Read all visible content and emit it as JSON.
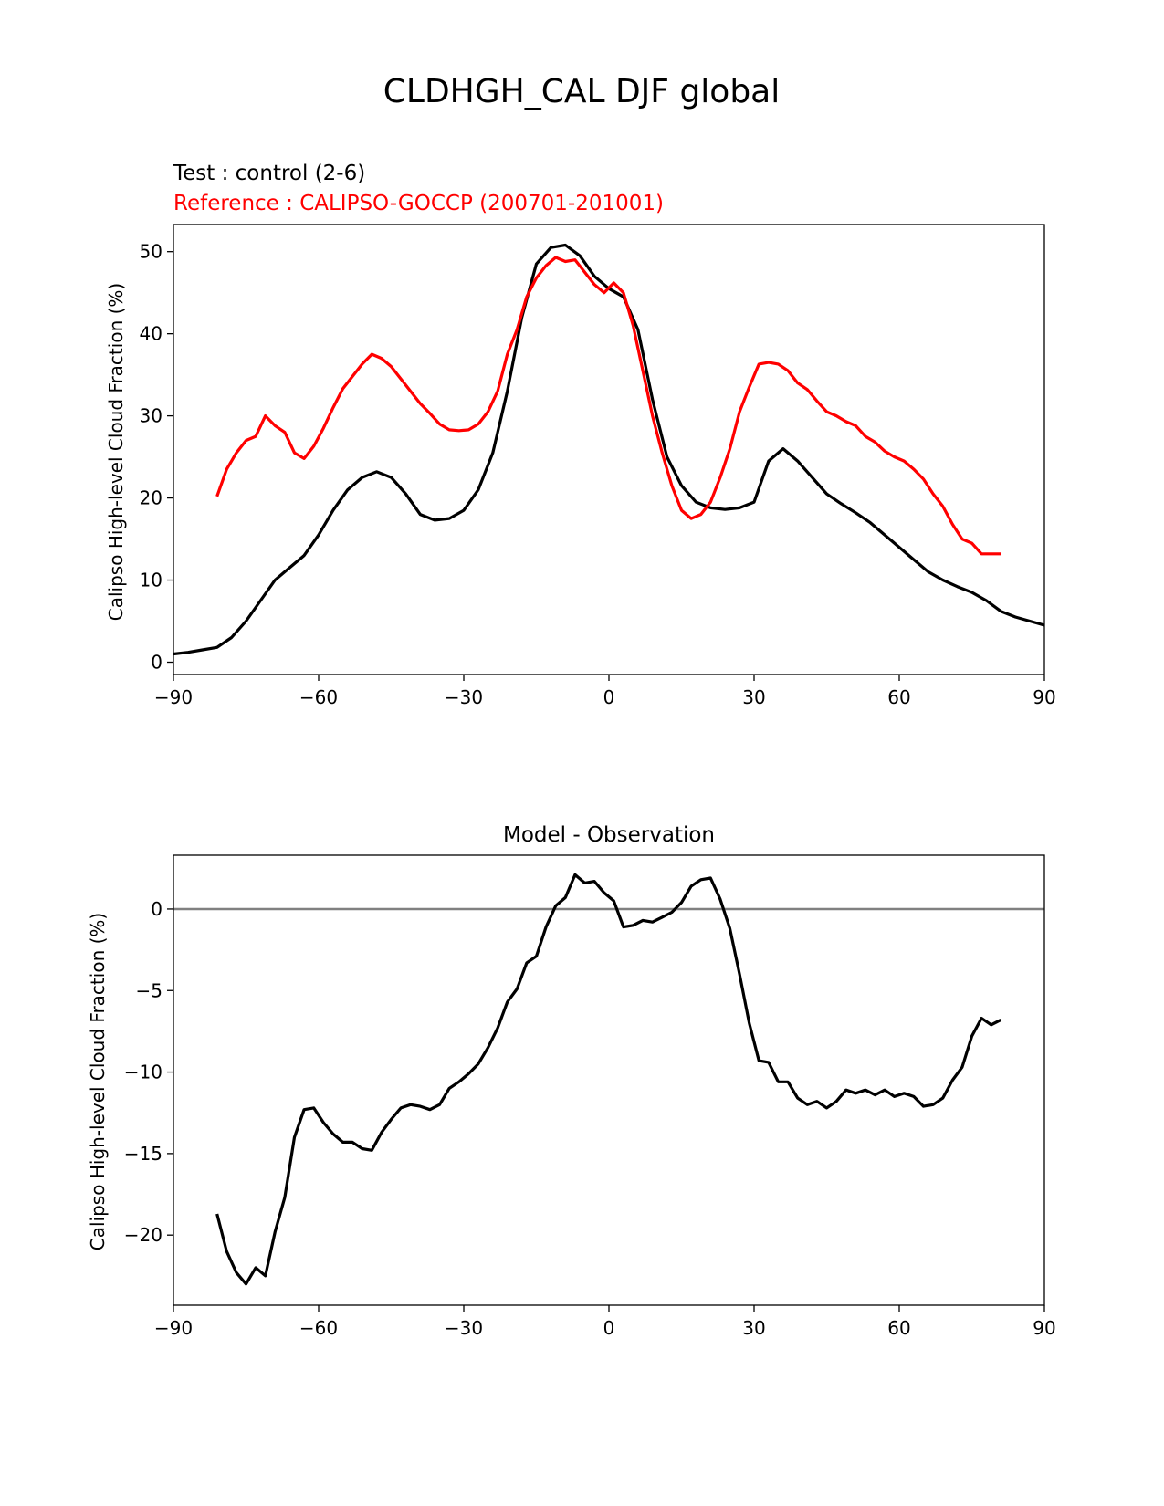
{
  "figure": {
    "title": "CLDHGH_CAL DJF global"
  },
  "chart_data": [
    {
      "type": "line",
      "test_label": "Test : control (2-6)",
      "reference_label": "Reference : CALIPSO-GOCCP (200701-201001)",
      "ylabel": "Calipso High-level Cloud Fraction (%)",
      "xlabel": "",
      "xlim": [
        -90,
        90
      ],
      "ylim": [
        -1.5,
        53.3
      ],
      "xticks": [
        -90,
        -60,
        -30,
        0,
        30,
        60,
        90
      ],
      "xtick_labels": [
        "−90",
        "−60",
        "−30",
        "0",
        "30",
        "60",
        "90"
      ],
      "yticks": [
        0,
        10,
        20,
        30,
        40,
        50
      ],
      "ytick_labels": [
        "0",
        "10",
        "20",
        "30",
        "40",
        "50"
      ],
      "grid": false,
      "colors": {
        "test": "#000000",
        "reference": "#ff0000"
      },
      "series": [
        {
          "role": "test",
          "x": [
            -90,
            -87,
            -84,
            -81,
            -78,
            -75,
            -72,
            -69,
            -66,
            -63,
            -60,
            -57,
            -54,
            -51,
            -48,
            -45,
            -42,
            -39,
            -36,
            -33,
            -30,
            -27,
            -24,
            -21,
            -18,
            -15,
            -12,
            -9,
            -6,
            -3,
            0,
            3,
            6,
            9,
            12,
            15,
            18,
            21,
            24,
            27,
            30,
            33,
            36,
            39,
            42,
            45,
            48,
            51,
            54,
            57,
            60,
            63,
            66,
            69,
            72,
            75,
            78,
            81,
            84,
            87,
            90
          ],
          "values": [
            1.0,
            1.2,
            1.5,
            1.8,
            3.0,
            5.0,
            7.5,
            10.0,
            11.5,
            13.0,
            15.5,
            18.5,
            21.0,
            22.5,
            23.2,
            22.5,
            20.5,
            18.0,
            17.3,
            17.5,
            18.5,
            21.0,
            25.5,
            33.0,
            42.0,
            48.5,
            50.5,
            50.8,
            49.5,
            47.0,
            45.5,
            44.5,
            40.5,
            32.0,
            25.0,
            21.5,
            19.5,
            18.8,
            18.6,
            18.8,
            19.5,
            24.5,
            26.0,
            24.5,
            22.5,
            20.5,
            19.3,
            18.2,
            17.0,
            15.5,
            14.0,
            12.5,
            11.0,
            10.0,
            9.2,
            8.5,
            7.5,
            6.2,
            5.5,
            5.0,
            4.5
          ]
        },
        {
          "role": "reference",
          "x": [
            -81,
            -79,
            -77,
            -75,
            -73,
            -71,
            -69,
            -67,
            -65,
            -63,
            -61,
            -59,
            -57,
            -55,
            -53,
            -51,
            -49,
            -47,
            -45,
            -43,
            -41,
            -39,
            -37,
            -35,
            -33,
            -31,
            -29,
            -27,
            -25,
            -23,
            -21,
            -19,
            -17,
            -15,
            -13,
            -11,
            -9,
            -7,
            -5,
            -3,
            -1,
            1,
            3,
            5,
            7,
            9,
            11,
            13,
            15,
            17,
            19,
            21,
            23,
            25,
            27,
            29,
            31,
            33,
            35,
            37,
            39,
            41,
            43,
            45,
            47,
            49,
            51,
            53,
            55,
            57,
            59,
            61,
            63,
            65,
            67,
            69,
            71,
            73,
            75,
            77,
            79,
            81
          ],
          "values": [
            20.2,
            23.5,
            25.5,
            27.0,
            27.5,
            30.0,
            28.8,
            28.0,
            25.5,
            24.8,
            26.3,
            28.5,
            31.0,
            33.3,
            34.8,
            36.3,
            37.5,
            37.0,
            36.0,
            34.5,
            33.0,
            31.5,
            30.3,
            29.0,
            28.3,
            28.2,
            28.3,
            29.0,
            30.5,
            33.0,
            37.5,
            40.5,
            44.5,
            46.8,
            48.3,
            49.3,
            48.8,
            49.0,
            47.5,
            46.0,
            45.0,
            46.2,
            45.0,
            41.0,
            35.5,
            30.0,
            25.5,
            21.5,
            18.5,
            17.5,
            18.0,
            19.5,
            22.5,
            26.0,
            30.5,
            33.5,
            36.3,
            36.5,
            36.3,
            35.5,
            34.0,
            33.2,
            31.8,
            30.5,
            30.0,
            29.3,
            28.8,
            27.5,
            26.8,
            25.7,
            25.0,
            24.5,
            23.5,
            22.3,
            20.5,
            19.0,
            16.8,
            15.0,
            14.5,
            13.2,
            13.2,
            13.2
          ]
        }
      ]
    },
    {
      "type": "line",
      "title": "Model - Observation",
      "ylabel": "Calipso High-level Cloud Fraction (%)",
      "xlabel": "",
      "xlim": [
        -90,
        90
      ],
      "ylim": [
        -24.3,
        3.3
      ],
      "xticks": [
        -90,
        -60,
        -30,
        0,
        30,
        60,
        90
      ],
      "xtick_labels": [
        "−90",
        "−60",
        "−30",
        "0",
        "30",
        "60",
        "90"
      ],
      "yticks": [
        -20,
        -15,
        -10,
        -5,
        0
      ],
      "ytick_labels": [
        "−20",
        "−15",
        "−10",
        "−5",
        "0"
      ],
      "grid": false,
      "zero_line_color": "#808080",
      "colors": {
        "diff": "#000000"
      },
      "series": [
        {
          "role": "diff",
          "x": [
            -81,
            -79,
            -77,
            -75,
            -73,
            -71,
            -69,
            -67,
            -65,
            -63,
            -61,
            -59,
            -57,
            -55,
            -53,
            -51,
            -49,
            -47,
            -45,
            -43,
            -41,
            -39,
            -37,
            -35,
            -33,
            -31,
            -29,
            -27,
            -25,
            -23,
            -21,
            -19,
            -17,
            -15,
            -13,
            -11,
            -9,
            -7,
            -5,
            -3,
            -1,
            1,
            3,
            5,
            7,
            9,
            11,
            13,
            15,
            17,
            19,
            21,
            23,
            25,
            27,
            29,
            31,
            33,
            35,
            37,
            39,
            41,
            43,
            45,
            47,
            49,
            51,
            53,
            55,
            57,
            59,
            61,
            63,
            65,
            67,
            69,
            71,
            73,
            75,
            77,
            79,
            81
          ],
          "values": [
            -18.7,
            -21.0,
            -22.3,
            -23.0,
            -22.0,
            -22.5,
            -19.8,
            -17.7,
            -14.0,
            -12.3,
            -12.2,
            -13.1,
            -13.8,
            -14.3,
            -14.3,
            -14.7,
            -14.8,
            -13.7,
            -12.9,
            -12.2,
            -12.0,
            -12.1,
            -12.3,
            -12.0,
            -11.0,
            -10.6,
            -10.1,
            -9.5,
            -8.5,
            -7.3,
            -5.7,
            -4.9,
            -3.3,
            -2.9,
            -1.1,
            0.2,
            0.7,
            2.1,
            1.6,
            1.7,
            1.0,
            0.5,
            -1.1,
            -1.0,
            -0.7,
            -0.8,
            -0.5,
            -0.2,
            0.4,
            1.4,
            1.8,
            1.9,
            0.6,
            -1.2,
            -4.0,
            -7.0,
            -9.3,
            -9.4,
            -10.6,
            -10.6,
            -11.6,
            -12.0,
            -11.8,
            -12.2,
            -11.8,
            -11.1,
            -11.3,
            -11.1,
            -11.4,
            -11.1,
            -11.5,
            -11.3,
            -11.5,
            -12.1,
            -12.0,
            -11.6,
            -10.5,
            -9.7,
            -7.8,
            -6.7,
            -7.1,
            -6.8
          ]
        }
      ]
    }
  ]
}
